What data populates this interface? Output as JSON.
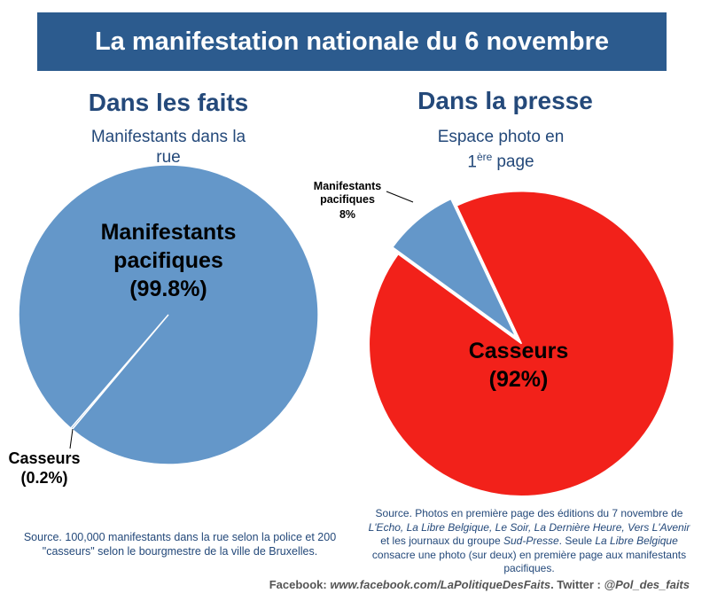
{
  "title": "La manifestation nationale du 6 novembre",
  "chart_data": [
    {
      "type": "pie",
      "title": "Dans les faits",
      "subtitle": "Manifestants dans la rue",
      "categories": [
        "Manifestants pacifiques",
        "Casseurs"
      ],
      "values": [
        99.8,
        0.2
      ],
      "value_labels": [
        "(99.8%)",
        "(0.2%)"
      ],
      "colors": [
        "#6497c9",
        "#6497c9"
      ]
    },
    {
      "type": "pie",
      "title": "Dans la presse",
      "subtitle": [
        "Espace photo en",
        "1",
        "ère",
        "page"
      ],
      "categories": [
        "Manifestants pacifiques",
        "Casseurs"
      ],
      "values": [
        8,
        92
      ],
      "value_labels": [
        "8%",
        "(92%)"
      ],
      "colors": [
        "#6497c9",
        "#f2211a"
      ]
    }
  ],
  "sources": [
    [
      {
        "text": "Source. 100,000 manifestants dans la rue selon la police et 200 \"casseurs\" selon le bourgmestre de la ville de Bruxelles.",
        "italic": false
      }
    ],
    [
      {
        "text": "Source. Photos en première page des éditions du 7 novembre de ",
        "italic": false
      },
      {
        "text": "L'Echo, La Libre Belgique, Le Soir, La Dernière Heure, Vers L'Avenir",
        "italic": true
      },
      {
        "text": " et les journaux du groupe ",
        "italic": false
      },
      {
        "text": "Sud-Presse",
        "italic": true
      },
      {
        "text": ". Seule ",
        "italic": false
      },
      {
        "text": "La Libre Belgique",
        "italic": true
      },
      {
        "text": " consacre une photo (sur deux) en première page aux manifestants pacifiques.",
        "italic": false
      }
    ]
  ],
  "footer": [
    {
      "text": "Facebook: ",
      "italic": false
    },
    {
      "text": "www.facebook.com/LaPolitiqueDesFaits",
      "italic": true
    },
    {
      "text": ". Twitter : ",
      "italic": false
    },
    {
      "text": "@Pol_des_faits",
      "italic": true
    }
  ]
}
